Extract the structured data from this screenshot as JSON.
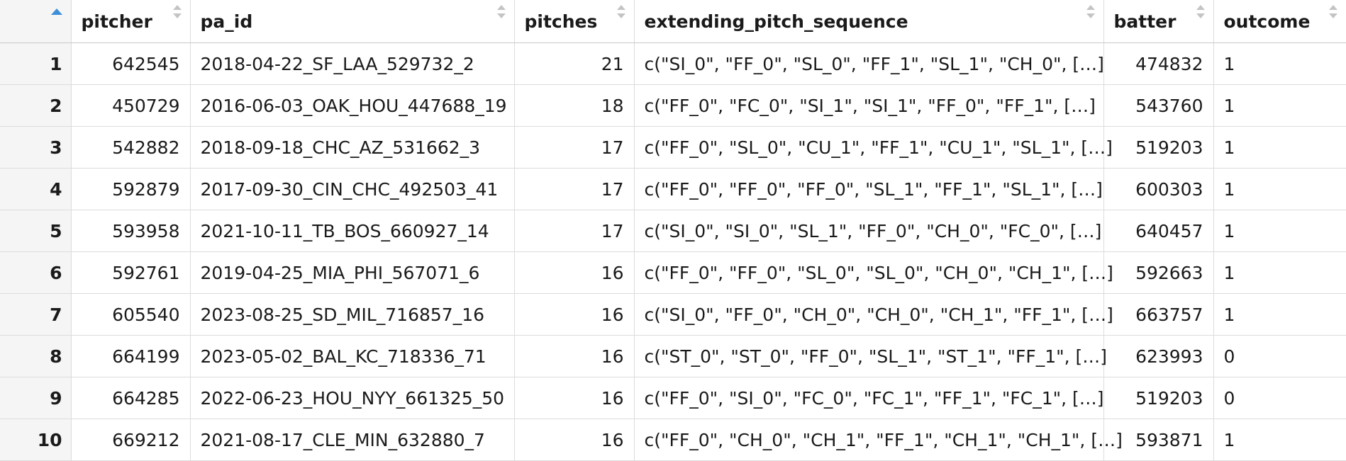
{
  "table": {
    "columns": [
      {
        "key": "index",
        "label": ""
      },
      {
        "key": "pitcher",
        "label": "pitcher"
      },
      {
        "key": "pa_id",
        "label": "pa_id"
      },
      {
        "key": "pitches",
        "label": "pitches"
      },
      {
        "key": "extending_pitch_sequence",
        "label": "extending_pitch_sequence"
      },
      {
        "key": "batter",
        "label": "batter"
      },
      {
        "key": "outcome",
        "label": "outcome"
      }
    ],
    "sort": {
      "column": "index",
      "direction": "ascending"
    },
    "rows": [
      {
        "index": "1",
        "pitcher": "642545",
        "pa_id": "2018-04-22_SF_LAA_529732_2",
        "pitches": "21",
        "seq": "c(\"SI_0\", \"FF_0\", \"SL_0\", \"FF_1\", \"SL_1\", \"CH_0\",  […]",
        "batter": "474832",
        "outcome": "1"
      },
      {
        "index": "2",
        "pitcher": "450729",
        "pa_id": "2016-06-03_OAK_HOU_447688_19",
        "pitches": "18",
        "seq": "c(\"FF_0\", \"FC_0\", \"SI_1\", \"SI_1\", \"FF_0\", \"FF_1\",  […]",
        "batter": "543760",
        "outcome": "1"
      },
      {
        "index": "3",
        "pitcher": "542882",
        "pa_id": "2018-09-18_CHC_AZ_531662_3",
        "pitches": "17",
        "seq": "c(\"FF_0\", \"SL_0\", \"CU_1\", \"FF_1\", \"CU_1\", \"SL_1\",  […]",
        "batter": "519203",
        "outcome": "1"
      },
      {
        "index": "4",
        "pitcher": "592879",
        "pa_id": "2017-09-30_CIN_CHC_492503_41",
        "pitches": "17",
        "seq": "c(\"FF_0\", \"FF_0\", \"FF_0\", \"SL_1\", \"FF_1\", \"SL_1\",  […]",
        "batter": "600303",
        "outcome": "1"
      },
      {
        "index": "5",
        "pitcher": "593958",
        "pa_id": "2021-10-11_TB_BOS_660927_14",
        "pitches": "17",
        "seq": "c(\"SI_0\", \"SI_0\", \"SL_1\", \"FF_0\", \"CH_0\", \"FC_0\",  […]",
        "batter": "640457",
        "outcome": "1"
      },
      {
        "index": "6",
        "pitcher": "592761",
        "pa_id": "2019-04-25_MIA_PHI_567071_6",
        "pitches": "16",
        "seq": "c(\"FF_0\", \"FF_0\", \"SL_0\", \"SL_0\", \"CH_0\", \"CH_1\",  […]",
        "batter": "592663",
        "outcome": "1"
      },
      {
        "index": "7",
        "pitcher": "605540",
        "pa_id": "2023-08-25_SD_MIL_716857_16",
        "pitches": "16",
        "seq": "c(\"SI_0\", \"FF_0\", \"CH_0\", \"CH_0\", \"CH_1\", \"FF_1\",  […]",
        "batter": "663757",
        "outcome": "1"
      },
      {
        "index": "8",
        "pitcher": "664199",
        "pa_id": "2023-05-02_BAL_KC_718336_71",
        "pitches": "16",
        "seq": "c(\"ST_0\", \"ST_0\", \"FF_0\", \"SL_1\", \"ST_1\", \"FF_1\",  […]",
        "batter": "623993",
        "outcome": "0"
      },
      {
        "index": "9",
        "pitcher": "664285",
        "pa_id": "2022-06-23_HOU_NYY_661325_50",
        "pitches": "16",
        "seq": "c(\"FF_0\", \"SI_0\", \"FC_0\", \"FC_1\", \"FF_1\", \"FC_1\",  […]",
        "batter": "519203",
        "outcome": "0"
      },
      {
        "index": "10",
        "pitcher": "669212",
        "pa_id": "2021-08-17_CLE_MIN_632880_7",
        "pitches": "16",
        "seq": "c(\"FF_0\", \"CH_0\", \"CH_1\", \"FF_1\", \"CH_1\", \"CH_1\",  […]",
        "batter": "593871",
        "outcome": "1"
      }
    ]
  },
  "icons": {
    "sort_active": "sort-ascending-icon",
    "sort_inactive": "sort-arrows-icon"
  },
  "colors": {
    "sort_active": "#3d8fd8",
    "sort_inactive": "#c4c4c4",
    "index_column_bg": "#f5f5f5",
    "border": "#dcdcdc"
  }
}
